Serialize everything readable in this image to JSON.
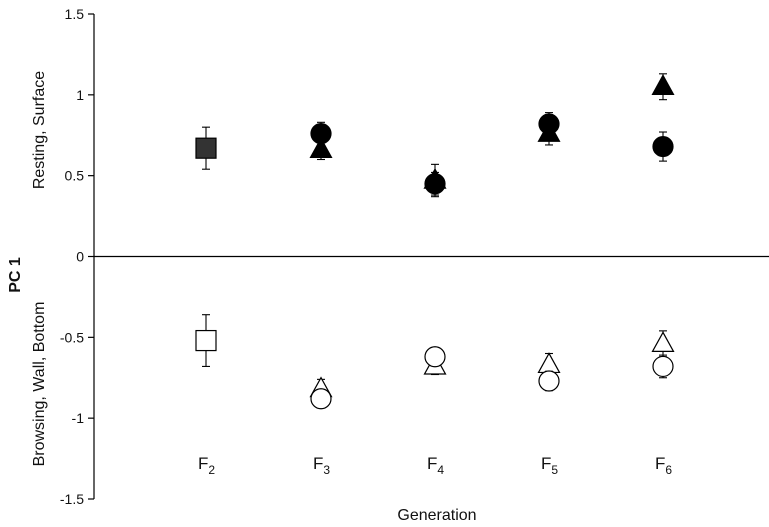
{
  "chart_data": {
    "type": "scatter",
    "title": "",
    "xlabel": "Generation",
    "ylabel": "PC 1",
    "ylabel_top": "Resting, Surface",
    "ylabel_bottom": "Browsing, Wall, Bottom",
    "ylim": [
      -1.5,
      1.5
    ],
    "yticks": [
      "-1.5",
      "-1",
      "-0.5",
      "0",
      "0.5",
      "1",
      "1.5"
    ],
    "categories": [
      {
        "base": "F",
        "sub": "2"
      },
      {
        "base": "F",
        "sub": "3"
      },
      {
        "base": "F",
        "sub": "4"
      },
      {
        "base": "F",
        "sub": "5"
      },
      {
        "base": "F",
        "sub": "6"
      }
    ],
    "series": [
      {
        "marker": "square",
        "fill": "#333333",
        "points": [
          {
            "x": 0,
            "y": 0.67,
            "err": 0.13
          }
        ]
      },
      {
        "marker": "triangle",
        "fill": "#000000",
        "points": [
          {
            "x": 1,
            "y": 0.66,
            "err": 0.06
          },
          {
            "x": 2,
            "y": 0.47,
            "err": 0.1
          },
          {
            "x": 3,
            "y": 0.76,
            "err": 0.07
          },
          {
            "x": 4,
            "y": 1.05,
            "err": 0.08
          }
        ]
      },
      {
        "marker": "circle",
        "fill": "#000000",
        "points": [
          {
            "x": 1,
            "y": 0.76,
            "err": 0.07
          },
          {
            "x": 2,
            "y": 0.45,
            "err": 0.07
          },
          {
            "x": 3,
            "y": 0.82,
            "err": 0.07
          },
          {
            "x": 4,
            "y": 0.68,
            "err": 0.09
          }
        ]
      },
      {
        "marker": "square",
        "fill": "#ffffff",
        "points": [
          {
            "x": 0,
            "y": -0.52,
            "err": 0.16
          }
        ]
      },
      {
        "marker": "triangle",
        "fill": "#ffffff",
        "points": [
          {
            "x": 1,
            "y": -0.82,
            "err": 0.06
          },
          {
            "x": 2,
            "y": -0.68,
            "err": 0.05
          },
          {
            "x": 3,
            "y": -0.67,
            "err": 0.07
          },
          {
            "x": 4,
            "y": -0.54,
            "err": 0.08
          }
        ]
      },
      {
        "marker": "circle",
        "fill": "#ffffff",
        "points": [
          {
            "x": 1,
            "y": -0.88,
            "err": 0.05
          },
          {
            "x": 2,
            "y": -0.62,
            "err": 0.05
          },
          {
            "x": 3,
            "y": -0.77,
            "err": 0.06
          },
          {
            "x": 4,
            "y": -0.68,
            "err": 0.07
          }
        ]
      }
    ]
  }
}
